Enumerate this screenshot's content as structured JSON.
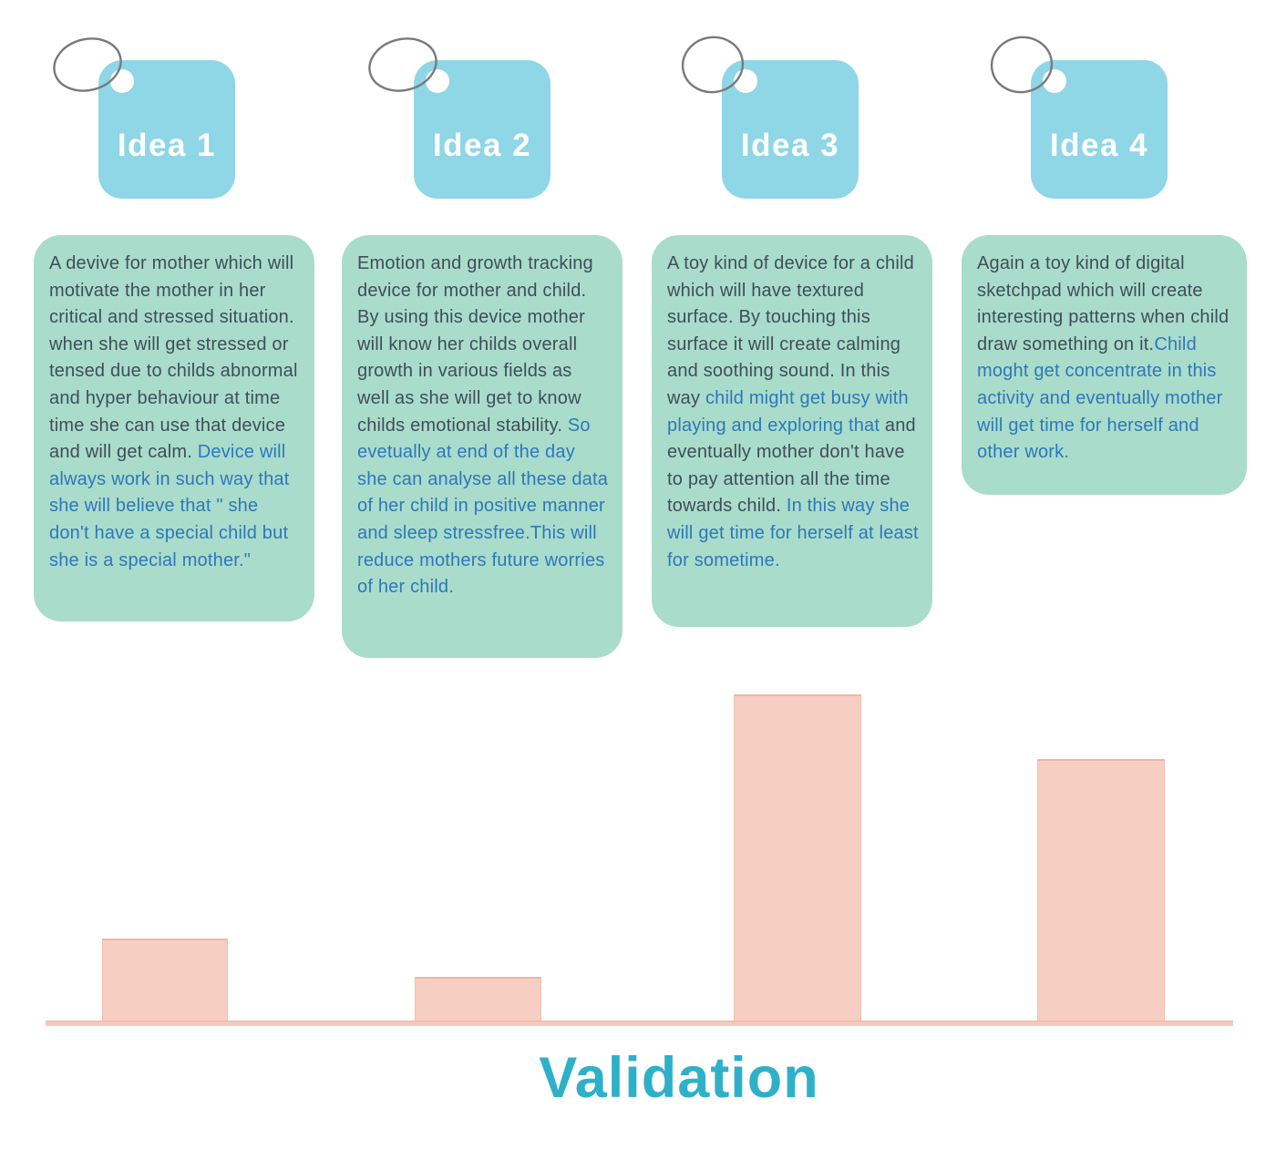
{
  "ideas": [
    {
      "tag": "Idea 1",
      "segments": [
        {
          "style": "dark",
          "text": "A devive for mother which will motivate the mother in her critical and stressed situation. when she will get stressed or tensed due to childs abnormal and hyper behaviour at time time she can use that device and will get calm. "
        },
        {
          "style": "blue",
          "text": "Device will always work in such way that she will believe that \" she don't have a special child but she is a special mother.\""
        }
      ]
    },
    {
      "tag": "Idea 2",
      "segments": [
        {
          "style": "dark",
          "text": "Emotion and growth tracking device for mother and child. By using this device mother will know her childs overall growth in various fields as well as she will get to know childs emotional stability. "
        },
        {
          "style": "blue",
          "text": "So evetually at end of the day she can analyse all these data of her child in positive manner and sleep stressfree.This will reduce mothers future worries of her child."
        }
      ]
    },
    {
      "tag": "Idea 3",
      "segments": [
        {
          "style": "dark",
          "text": "A toy kind of device for a child which will have textured surface. By touching this surface it will create calming and soothing sound. In this way "
        },
        {
          "style": "blue",
          "text": "child might get busy with playing and exploring that "
        },
        {
          "style": "dark",
          "text": "and eventually mother don't have to pay attention all the time towards child. "
        },
        {
          "style": "blue",
          "text": "In this way she will get time for herself at least for sometime."
        }
      ]
    },
    {
      "tag": "Idea 4",
      "segments": [
        {
          "style": "dark",
          "text": "Again a toy kind of digital sketchpad which will create interesting patterns when child draw something on it."
        },
        {
          "style": "blue",
          "text": "Child moght get concentrate in this activity and eventually mother will get time for herself and other work."
        }
      ]
    }
  ],
  "chart_data": {
    "type": "bar",
    "title": "Validation",
    "categories": [
      "Idea 1",
      "Idea 2",
      "Idea 3",
      "Idea 4"
    ],
    "values": [
      96,
      54,
      364,
      293
    ],
    "value_note": "bar heights in px; no numeric axis, ticks or gridlines shown",
    "xlabel": "",
    "ylabel": "",
    "legend": false,
    "grid": false,
    "baseline": true
  },
  "colors": {
    "tag_blue": "#8fd6e6",
    "card_green": "#a9dcca",
    "dark_text": "#3f4e59",
    "blue_text": "#2e77bd",
    "bar_fill": "#f6cfc2",
    "bar_edge": "#f0b5a3",
    "baseline_pink": "#f4c9bb",
    "title_teal": "#2fb0c9",
    "ring_gray": "#7a7a7a"
  }
}
